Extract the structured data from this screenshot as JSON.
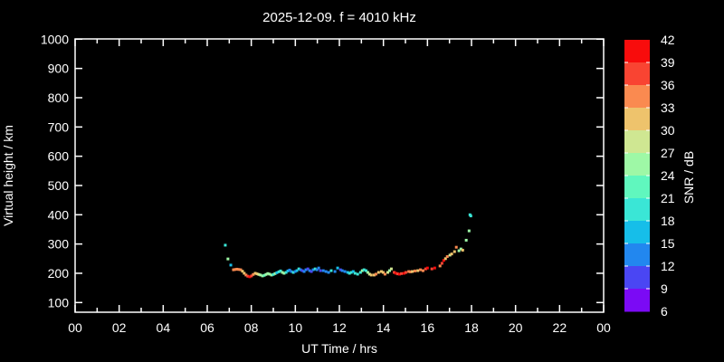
{
  "title": "2025-12-09. f = 4010 kHz",
  "x_axis": {
    "label": "UT Time / hrs",
    "tick_labels": [
      "00",
      "02",
      "04",
      "06",
      "08",
      "10",
      "12",
      "14",
      "16",
      "18",
      "20",
      "22",
      "00"
    ],
    "major_step_hrs": 2,
    "minor_step_hrs": 1,
    "range_hrs": [
      0,
      24
    ]
  },
  "y_axis": {
    "label": "Virtual height / km",
    "ticks": [
      100,
      200,
      300,
      400,
      500,
      600,
      700,
      800,
      900,
      1000
    ],
    "range_km": [
      100,
      1000
    ]
  },
  "colorbar": {
    "label": "SNR / dB",
    "tick_labels": [
      "42",
      "39",
      "36",
      "33",
      "30",
      "27",
      "24",
      "21",
      "18",
      "15",
      "12",
      "9",
      "6"
    ],
    "segments_top_to_bottom": [
      {
        "from": 39,
        "to": 42,
        "color": "#F80C0C"
      },
      {
        "from": 36,
        "to": 39,
        "color": "#F94432"
      },
      {
        "from": 33,
        "to": 36,
        "color": "#FA8A50"
      },
      {
        "from": 30,
        "to": 33,
        "color": "#EEC36C"
      },
      {
        "from": 27,
        "to": 30,
        "color": "#CFE792"
      },
      {
        "from": 24,
        "to": 27,
        "color": "#9EF8A6"
      },
      {
        "from": 21,
        "to": 24,
        "color": "#60F7BE"
      },
      {
        "from": 18,
        "to": 21,
        "color": "#3AE6D6"
      },
      {
        "from": 15,
        "to": 18,
        "color": "#16BEE9"
      },
      {
        "from": 12,
        "to": 15,
        "color": "#2287EF"
      },
      {
        "from": 9,
        "to": 12,
        "color": "#4A46F3"
      },
      {
        "from": 6,
        "to": 9,
        "color": "#7B0AF5"
      }
    ]
  },
  "chart_data": {
    "type": "scatter",
    "title": "2025-12-09. f = 4010 kHz",
    "xlabel": "UT Time / hrs",
    "ylabel": "Virtual height / km",
    "zlabel": "SNR / dB",
    "xlim": [
      0,
      24
    ],
    "ylim": [
      100,
      1000
    ],
    "zlim": [
      6,
      42
    ],
    "grid": false,
    "background": "#000000",
    "points_t_h_snr": [
      [
        6.82,
        296,
        19
      ],
      [
        6.94,
        249,
        25
      ],
      [
        7.07,
        228,
        16
      ],
      [
        7.19,
        212,
        34
      ],
      [
        7.27,
        213,
        35
      ],
      [
        7.35,
        214,
        34
      ],
      [
        7.43,
        213,
        35
      ],
      [
        7.52,
        212,
        34
      ],
      [
        7.6,
        207,
        31
      ],
      [
        7.68,
        200,
        32
      ],
      [
        7.76,
        194,
        34
      ],
      [
        7.84,
        190,
        37
      ],
      [
        7.93,
        188,
        40
      ],
      [
        8.01,
        191,
        37
      ],
      [
        8.09,
        196,
        34
      ],
      [
        8.18,
        200,
        31
      ],
      [
        8.26,
        198,
        30
      ],
      [
        8.34,
        196,
        27
      ],
      [
        8.42,
        194,
        25
      ],
      [
        8.51,
        191,
        24
      ],
      [
        8.59,
        193,
        22
      ],
      [
        8.67,
        196,
        25
      ],
      [
        8.75,
        199,
        26
      ],
      [
        8.83,
        197,
        26
      ],
      [
        8.92,
        194,
        24
      ],
      [
        9.0,
        196,
        19
      ],
      [
        9.08,
        199,
        24
      ],
      [
        9.16,
        202,
        17
      ],
      [
        9.25,
        205,
        18
      ],
      [
        9.33,
        208,
        19
      ],
      [
        9.41,
        203,
        25
      ],
      [
        9.49,
        200,
        24
      ],
      [
        9.58,
        203,
        18
      ],
      [
        9.66,
        208,
        17
      ],
      [
        9.74,
        211,
        13
      ],
      [
        9.82,
        206,
        14
      ],
      [
        9.91,
        203,
        18
      ],
      [
        9.99,
        206,
        13
      ],
      [
        10.07,
        209,
        17
      ],
      [
        10.16,
        215,
        19
      ],
      [
        10.24,
        212,
        13
      ],
      [
        10.32,
        209,
        10
      ],
      [
        10.4,
        206,
        13
      ],
      [
        10.48,
        212,
        13
      ],
      [
        10.57,
        215,
        10
      ],
      [
        10.65,
        209,
        13
      ],
      [
        10.73,
        206,
        10
      ],
      [
        10.81,
        212,
        13
      ],
      [
        10.9,
        215,
        19
      ],
      [
        10.98,
        212,
        14
      ],
      [
        11.06,
        218,
        13
      ],
      [
        11.14,
        209,
        10
      ],
      [
        11.27,
        209,
        13
      ],
      [
        11.39,
        206,
        13
      ],
      [
        11.51,
        203,
        14
      ],
      [
        11.63,
        209,
        19
      ],
      [
        11.8,
        206,
        13
      ],
      [
        11.92,
        218,
        17
      ],
      [
        12.05,
        212,
        10
      ],
      [
        12.13,
        209,
        13
      ],
      [
        12.25,
        206,
        14
      ],
      [
        12.38,
        203,
        17
      ],
      [
        12.46,
        200,
        19
      ],
      [
        12.54,
        203,
        20
      ],
      [
        12.63,
        206,
        16
      ],
      [
        12.71,
        200,
        19
      ],
      [
        12.83,
        197,
        19
      ],
      [
        12.96,
        203,
        19
      ],
      [
        13.04,
        209,
        26
      ],
      [
        13.12,
        212,
        19
      ],
      [
        13.21,
        209,
        19
      ],
      [
        13.29,
        203,
        25
      ],
      [
        13.37,
        197,
        28
      ],
      [
        13.45,
        194,
        31
      ],
      [
        13.58,
        194,
        31
      ],
      [
        13.66,
        197,
        34
      ],
      [
        13.78,
        203,
        31
      ],
      [
        13.91,
        206,
        31
      ],
      [
        13.99,
        203,
        31
      ],
      [
        14.07,
        197,
        34
      ],
      [
        14.2,
        203,
        28
      ],
      [
        14.28,
        209,
        26
      ],
      [
        14.36,
        215,
        28
      ],
      [
        14.49,
        203,
        38
      ],
      [
        14.57,
        200,
        40
      ],
      [
        14.65,
        198,
        38
      ],
      [
        14.73,
        197,
        40
      ],
      [
        14.82,
        199,
        38
      ],
      [
        14.94,
        200,
        40
      ],
      [
        15.02,
        203,
        38
      ],
      [
        15.15,
        206,
        35
      ],
      [
        15.23,
        205,
        34
      ],
      [
        15.31,
        206,
        31
      ],
      [
        15.43,
        208,
        34
      ],
      [
        15.56,
        209,
        31
      ],
      [
        15.68,
        212,
        35
      ],
      [
        15.8,
        209,
        34
      ],
      [
        15.92,
        215,
        38
      ],
      [
        16.0,
        218,
        40
      ],
      [
        16.2,
        215,
        38
      ],
      [
        16.33,
        218,
        40
      ],
      [
        16.57,
        225,
        35
      ],
      [
        16.66,
        234,
        38
      ],
      [
        16.74,
        244,
        40
      ],
      [
        16.82,
        250,
        31
      ],
      [
        16.9,
        257,
        35
      ],
      [
        17.02,
        262,
        28
      ],
      [
        17.1,
        266,
        31
      ],
      [
        17.23,
        274,
        31
      ],
      [
        17.31,
        289,
        35
      ],
      [
        17.43,
        277,
        26
      ],
      [
        17.52,
        283,
        26
      ],
      [
        17.6,
        279,
        31
      ],
      [
        17.76,
        313,
        26
      ],
      [
        17.89,
        345,
        24
      ],
      [
        17.93,
        400,
        19
      ],
      [
        17.97,
        396,
        20
      ]
    ]
  }
}
